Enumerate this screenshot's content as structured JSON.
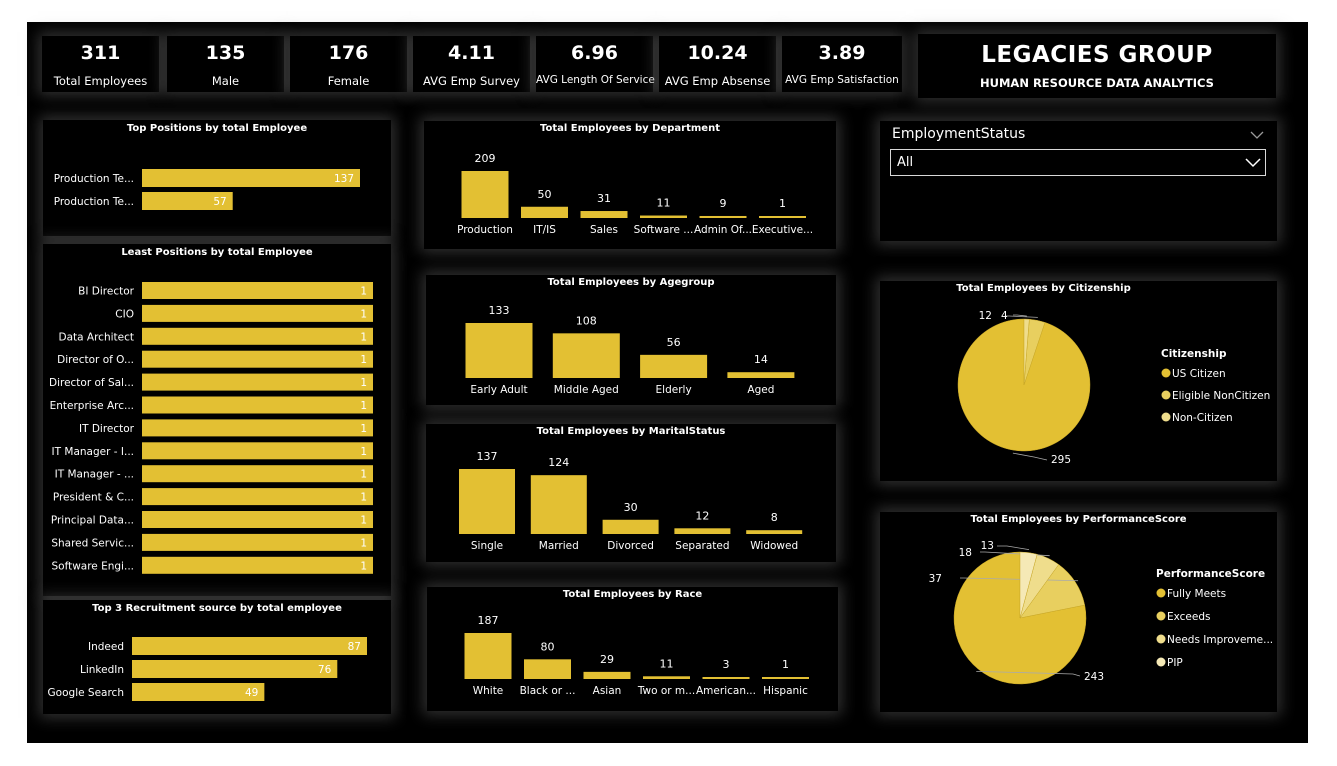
{
  "colors": {
    "bar": "#e3c033",
    "pie": [
      "#e3c033",
      "#e8cf5f",
      "#efdd8c",
      "#f5e9b6"
    ],
    "bg": "#000000",
    "text": "#ffffff"
  },
  "kpis": [
    {
      "value": "311",
      "label": "Total Employees"
    },
    {
      "value": "135",
      "label": "Male"
    },
    {
      "value": "176",
      "label": "Female"
    },
    {
      "value": "4.11",
      "label": "AVG Emp Survey"
    },
    {
      "value": "6.96",
      "label": "AVG Length Of Service"
    },
    {
      "value": "10.24",
      "label": "AVG Emp Absense"
    },
    {
      "value": "3.89",
      "label": "AVG Emp Satisfaction"
    }
  ],
  "brand": {
    "title": "LEGACIES GROUP",
    "subtitle": "HUMAN RESOURCE DATA ANALYTICS"
  },
  "filter": {
    "title": "EmploymentStatus",
    "value": "All"
  },
  "chart_data": [
    {
      "id": "top_positions",
      "type": "bar",
      "orientation": "horizontal",
      "title": "Top Positions by total Employee",
      "categories": [
        "Production Te...",
        "Production Te..."
      ],
      "values": [
        137,
        57
      ],
      "xlim": [
        0,
        137
      ]
    },
    {
      "id": "least_positions",
      "type": "bar",
      "orientation": "horizontal",
      "title": "Least Positions by total Employee",
      "categories": [
        "BI Director",
        "CIO",
        "Data Architect",
        "Director of O...",
        "Director of Sal...",
        "Enterprise Arc...",
        "IT Director",
        "IT Manager - I...",
        "IT Manager - ...",
        "President & C...",
        "Principal Data...",
        "Shared Servic...",
        "Software Engi..."
      ],
      "values": [
        1,
        1,
        1,
        1,
        1,
        1,
        1,
        1,
        1,
        1,
        1,
        1,
        1
      ],
      "xlim": [
        0,
        1
      ]
    },
    {
      "id": "recruitment",
      "type": "bar",
      "orientation": "horizontal",
      "title": "Top 3 Recruitment source by total employee",
      "categories": [
        "Indeed",
        "LinkedIn",
        "Google Search"
      ],
      "values": [
        87,
        76,
        49
      ],
      "xlim": [
        0,
        87
      ]
    },
    {
      "id": "department",
      "type": "bar",
      "title": "Total Employees by Department",
      "categories": [
        "Production",
        "IT/IS",
        "Sales",
        "Software ...",
        "Admin Of...",
        "Executive..."
      ],
      "values": [
        209,
        50,
        31,
        11,
        9,
        1
      ],
      "ylim": [
        0,
        209
      ]
    },
    {
      "id": "agegroup",
      "type": "bar",
      "title": "Total Employees by Agegroup",
      "categories": [
        "Early Adult",
        "Middle Aged",
        "Elderly",
        "Aged"
      ],
      "values": [
        133,
        108,
        56,
        14
      ],
      "ylim": [
        0,
        133
      ]
    },
    {
      "id": "marital",
      "type": "bar",
      "title": "Total Employees by MaritalStatus",
      "categories": [
        "Single",
        "Married",
        "Divorced",
        "Separated",
        "Widowed"
      ],
      "values": [
        137,
        124,
        30,
        12,
        8
      ],
      "ylim": [
        0,
        137
      ]
    },
    {
      "id": "race",
      "type": "bar",
      "title": "Total Employees by Race",
      "categories": [
        "White",
        "Black or ...",
        "Asian",
        "Two or m...",
        "American...",
        "Hispanic"
      ],
      "values": [
        187,
        80,
        29,
        11,
        3,
        1
      ],
      "ylim": [
        0,
        187
      ]
    },
    {
      "id": "citizenship",
      "type": "pie",
      "title": "Total Employees by Citizenship",
      "legend_title": "Citizenship",
      "categories": [
        "US Citizen",
        "Eligible NonCitizen",
        "Non-Citizen"
      ],
      "values": [
        295,
        12,
        4
      ]
    },
    {
      "id": "performance",
      "type": "pie",
      "title": "Total Employees by PerformanceScore",
      "legend_title": "PerformanceScore",
      "categories": [
        "Fully Meets",
        "Exceeds",
        "Needs Improveme...",
        "PIP"
      ],
      "values": [
        243,
        37,
        18,
        13
      ]
    }
  ]
}
